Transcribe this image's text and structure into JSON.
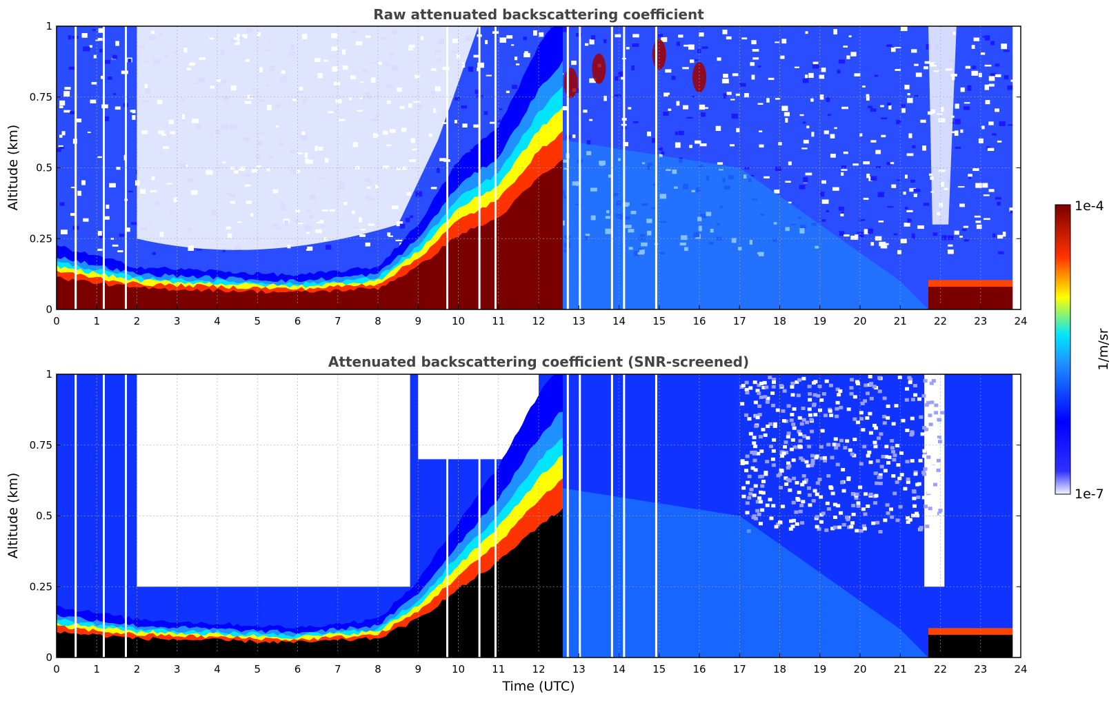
{
  "chart_data": [
    {
      "type": "heatmap",
      "title": "Raw attenuated backscattering coefficient",
      "xlabel": "",
      "ylabel": "Altitude (km)",
      "xlim": [
        0,
        24
      ],
      "ylim": [
        0,
        1
      ],
      "xticks": [
        "0",
        "1",
        "2",
        "3",
        "4",
        "5",
        "6",
        "7",
        "8",
        "9",
        "10",
        "11",
        "12",
        "13",
        "14",
        "15",
        "16",
        "17",
        "18",
        "19",
        "20",
        "21",
        "22",
        "23",
        "24"
      ],
      "yticks": [
        "0",
        "0.25",
        "0.5",
        "0.75",
        "1"
      ],
      "grid": true,
      "colorbar": "shared",
      "data_end_hour": 23.8,
      "surface_layer_top_km": [
        {
          "hour": 0,
          "top": 0.15
        },
        {
          "hour": 2,
          "top": 0.1
        },
        {
          "hour": 6,
          "top": 0.08
        },
        {
          "hour": 8,
          "top": 0.1
        },
        {
          "hour": 9,
          "top": 0.2
        },
        {
          "hour": 10,
          "top": 0.35
        },
        {
          "hour": 11,
          "top": 0.43
        },
        {
          "hour": 12,
          "top": 0.62
        },
        {
          "hour": 12.6,
          "top": 0.7
        }
      ],
      "residual_layer_traces": [
        {
          "hour": 12.8,
          "altitude_km": 0.8
        },
        {
          "hour": 13.5,
          "altitude_km": 0.85
        },
        {
          "hour": 15.0,
          "altitude_km": 0.9
        },
        {
          "hour": 16.0,
          "altitude_km": 0.82
        }
      ],
      "nocturnal_layer": {
        "start_hour": 21.7,
        "end_hour": 23.8,
        "top_km": 0.08
      }
    },
    {
      "type": "heatmap",
      "title": "Attenuated backscattering coefficient (SNR-screened)",
      "xlabel": "Time (UTC)",
      "ylabel": "Altitude (km)",
      "xlim": [
        0,
        24
      ],
      "ylim": [
        0,
        1
      ],
      "xticks": [
        "0",
        "1",
        "2",
        "3",
        "4",
        "5",
        "6",
        "7",
        "8",
        "9",
        "10",
        "11",
        "12",
        "13",
        "14",
        "15",
        "16",
        "17",
        "18",
        "19",
        "20",
        "21",
        "22",
        "23",
        "24"
      ],
      "yticks": [
        "0",
        "0.25",
        "0.5",
        "0.75",
        "1"
      ],
      "grid": true,
      "colorbar": "shared",
      "data_end_hour": 23.8,
      "surface_layer_top_km": [
        {
          "hour": 0,
          "top": 0.12
        },
        {
          "hour": 2,
          "top": 0.09
        },
        {
          "hour": 6,
          "top": 0.07
        },
        {
          "hour": 8,
          "top": 0.09
        },
        {
          "hour": 9,
          "top": 0.18
        },
        {
          "hour": 10,
          "top": 0.32
        },
        {
          "hour": 11,
          "top": 0.45
        },
        {
          "hour": 12,
          "top": 0.62
        },
        {
          "hour": 12.6,
          "top": 0.7
        }
      ],
      "screened_out_regions": [
        {
          "hour_from": 2.0,
          "hour_to": 8.8,
          "above_km": 0.25
        },
        {
          "hour_from": 9.0,
          "hour_to": 12.0,
          "above_km": 0.7
        },
        {
          "hour_from": 21.6,
          "hour_to": 22.1,
          "above_km": 0.25
        }
      ],
      "nocturnal_layer": {
        "start_hour": 21.7,
        "end_hour": 23.8,
        "top_km": 0.08
      }
    }
  ],
  "colorbar": {
    "label": "1/m/sr",
    "max_label": "1e-4",
    "min_label": "1e-7",
    "scale": "log",
    "colors": [
      "#f4f4ff",
      "#0000ff",
      "#1e90ff",
      "#00e5ff",
      "#ffff00",
      "#ff3300",
      "#7a0000"
    ]
  }
}
